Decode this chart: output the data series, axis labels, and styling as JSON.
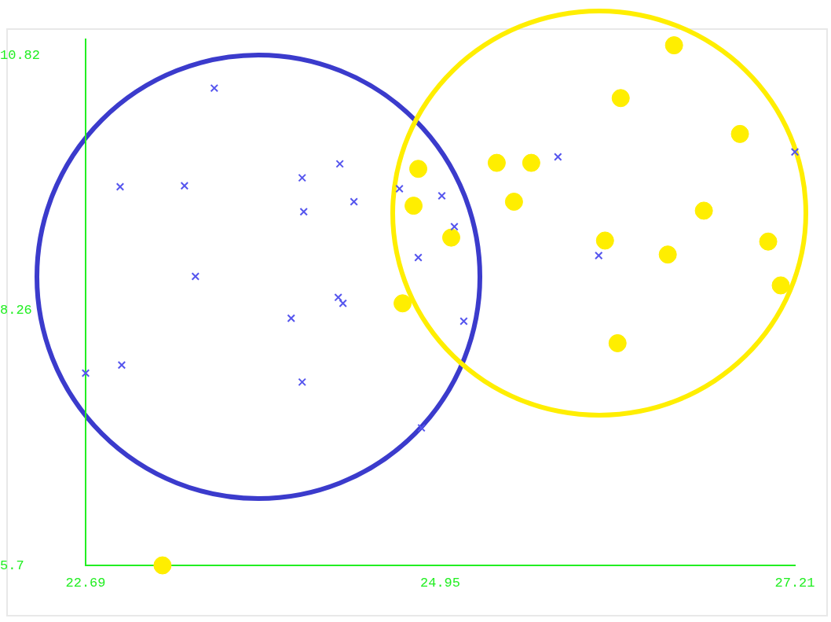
{
  "chart_data": {
    "type": "scatter",
    "xlim": [
      22.69,
      27.21
    ],
    "ylim": [
      5.7,
      10.98
    ],
    "xticks": [
      22.69,
      24.95,
      27.21
    ],
    "yticks": [
      5.7,
      8.26,
      10.82
    ],
    "grid": false,
    "legend": false,
    "series": [
      {
        "color": "#5555ee",
        "marker": "cross",
        "x": [
          23.51,
          22.91,
          23.32,
          24.07,
          24.31,
          24.08,
          24.4,
          24.69,
          24.96,
          25.04,
          24.81,
          23.39,
          24.3,
          24.33,
          24.0,
          25.1,
          22.92,
          22.69,
          24.07,
          24.83,
          25.7,
          25.96,
          27.21
        ],
        "values": [
          10.49,
          9.5,
          9.51,
          9.59,
          9.73,
          9.25,
          9.35,
          9.48,
          9.41,
          9.1,
          8.79,
          8.6,
          8.39,
          8.33,
          8.18,
          8.15,
          7.71,
          7.63,
          7.54,
          7.08,
          9.8,
          8.81,
          9.85
        ]
      },
      {
        "color": "#ffee00",
        "marker": "circle",
        "x": [
          26.44,
          26.1,
          26.86,
          24.81,
          25.31,
          25.53,
          24.78,
          25.42,
          26.63,
          25.02,
          26.0,
          26.4,
          27.04,
          27.12,
          24.71,
          26.08,
          23.18
        ],
        "values": [
          10.92,
          10.39,
          10.03,
          9.68,
          9.74,
          9.74,
          9.31,
          9.35,
          9.26,
          8.99,
          8.96,
          8.82,
          8.95,
          8.51,
          8.33,
          7.93,
          5.7
        ]
      }
    ]
  }
}
